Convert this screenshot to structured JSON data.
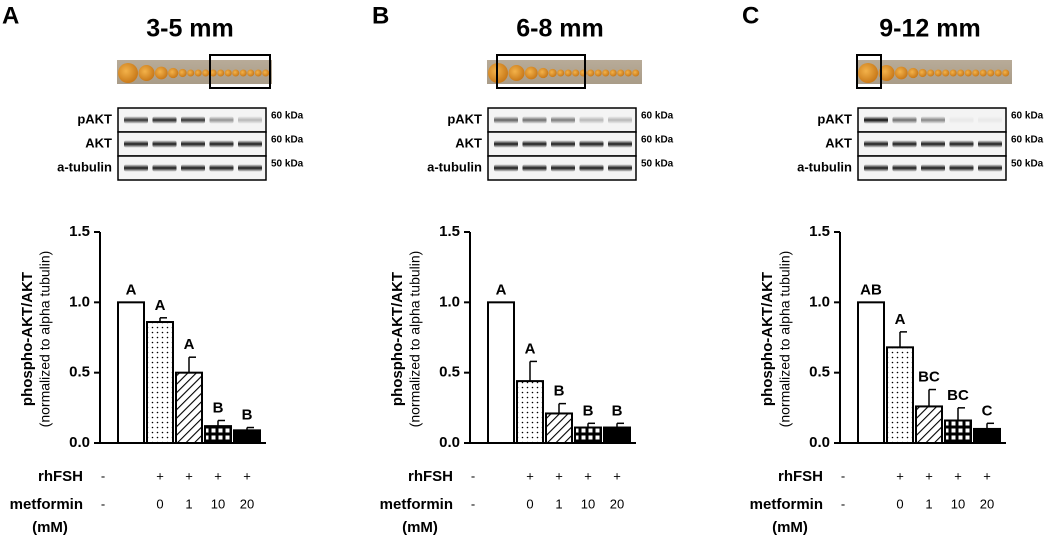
{
  "chart_data": [
    {
      "type": "bar",
      "panel": "A",
      "title": "3-5 mm",
      "blot_labels": [
        "pAKT",
        "AKT",
        "a-tubulin"
      ],
      "blot_sizes": [
        "60 kDa",
        "60 kDa",
        "50 kDa"
      ],
      "y_label": "phospho-AKT/AKT",
      "y_label2": "(normalized to alpha tubulin)",
      "ylim": [
        0,
        1.5
      ],
      "yticks": [
        {
          "value": 0,
          "label": "0.0"
        },
        0.5,
        {
          "value": 1,
          "label": "1.0"
        },
        1.5
      ],
      "series": [
        {
          "color": "#000000",
          "values": [
            1.0,
            0.86,
            0.5,
            0.12,
            0.09
          ],
          "errors": [
            null,
            0.03,
            0.11,
            0.04,
            0.02
          ],
          "annotations": [
            "A",
            "A",
            "A",
            "B",
            "B"
          ],
          "patterns": [
            "none",
            "dots",
            "hatch",
            "grid",
            "solid"
          ]
        }
      ],
      "rows": [
        {
          "name": "rhFSH",
          "labels": [
            "-",
            "+",
            "+",
            "+",
            "+"
          ]
        },
        {
          "name": "metformin",
          "unit": "(mM)",
          "labels": [
            "-",
            "0",
            "1",
            "10",
            "20"
          ]
        }
      ]
    },
    {
      "type": "bar",
      "panel": "B",
      "title": "6-8 mm",
      "blot_labels": [
        "pAKT",
        "AKT",
        "a-tubulin"
      ],
      "blot_sizes": [
        "60 kDa",
        "60 kDa",
        "50 kDa"
      ],
      "y_label": "phospho-AKT/AKT",
      "y_label2": "(normalized to alpha tubulin)",
      "ylim": [
        0,
        1.5
      ],
      "yticks": [
        {
          "value": 0,
          "label": "0.0"
        },
        0.5,
        {
          "value": 1,
          "label": "1.0"
        },
        1.5
      ],
      "series": [
        {
          "color": "#000000",
          "values": [
            1.0,
            0.44,
            0.21,
            0.11,
            0.11
          ],
          "errors": [
            null,
            0.14,
            0.07,
            0.03,
            0.03
          ],
          "annotations": [
            "A",
            "A",
            "B",
            "B",
            "B"
          ],
          "patterns": [
            "none",
            "dots",
            "hatch",
            "grid",
            "solid"
          ]
        }
      ],
      "rows": [
        {
          "name": "rhFSH",
          "labels": [
            "-",
            "+",
            "+",
            "+",
            "+"
          ]
        },
        {
          "name": "metformin",
          "unit": "(mM)",
          "labels": [
            "-",
            "0",
            "1",
            "10",
            "20"
          ]
        }
      ]
    },
    {
      "type": "bar",
      "panel": "C",
      "title": "9-12 mm",
      "blot_labels": [
        "pAKT",
        "AKT",
        "a-tubulin"
      ],
      "blot_sizes": [
        "60 kDa",
        "60 kDa",
        "50 kDa"
      ],
      "y_label": "phospho-AKT/AKT",
      "y_label2": "(normalized to alpha tubulin)",
      "ylim": [
        0,
        1.5
      ],
      "yticks": [
        {
          "value": 0,
          "label": "0.0"
        },
        0.5,
        {
          "value": 1,
          "label": "1.0"
        },
        1.5
      ],
      "series": [
        {
          "color": "#000000",
          "values": [
            1.0,
            0.68,
            0.26,
            0.16,
            0.1
          ],
          "errors": [
            null,
            0.11,
            0.12,
            0.09,
            0.04
          ],
          "annotations": [
            "AB",
            "A",
            "BC",
            "BC",
            "C"
          ],
          "patterns": [
            "none",
            "dots",
            "hatch",
            "grid",
            "solid"
          ]
        }
      ],
      "rows": [
        {
          "name": "rhFSH",
          "labels": [
            "-",
            "+",
            "+",
            "+",
            "+"
          ]
        },
        {
          "name": "metformin",
          "unit": "(mM)",
          "labels": [
            "-",
            "0",
            "1",
            "10",
            "20"
          ]
        }
      ]
    }
  ]
}
